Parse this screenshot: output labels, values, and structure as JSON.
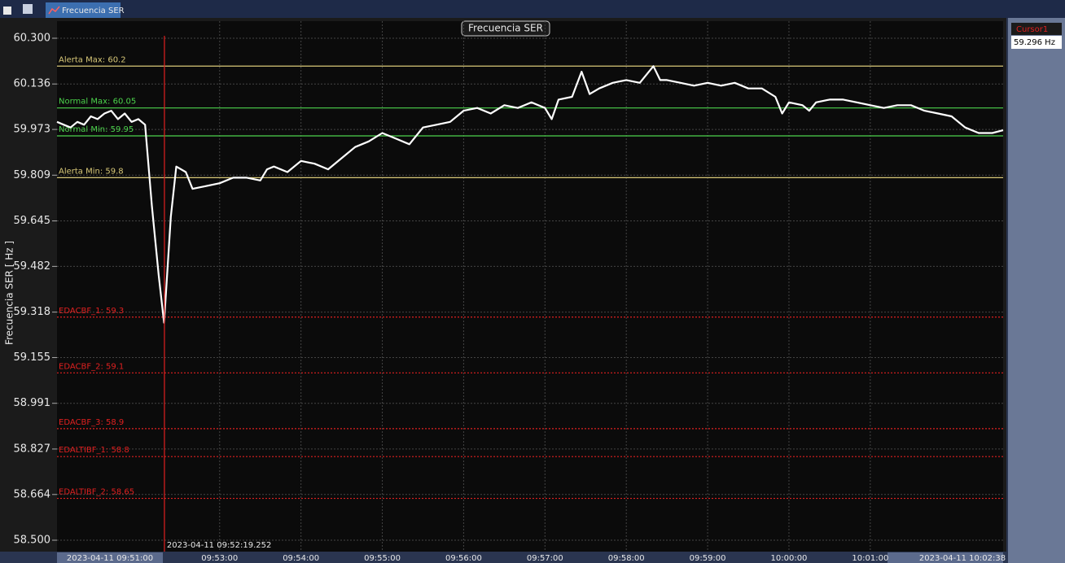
{
  "toolbar": {
    "tab": "Frecuencia SER"
  },
  "chart_data": {
    "type": "line",
    "title": "Frecuencia SER",
    "y_label": "Frecuencia SER [ Hz ]",
    "xlim": [
      "2023-04-11 09:51:00",
      "2023-04-11 10:02:38"
    ],
    "xticks": [
      "09:53:00",
      "09:54:00",
      "09:55:00",
      "09:56:00",
      "09:57:00",
      "09:58:00",
      "09:59:00",
      "10:00:00",
      "10:01:00"
    ],
    "ylim": [
      58.5,
      60.3
    ],
    "yticks": [
      {
        "value": 58.5,
        "label": "58.500"
      },
      58.664,
      58.827,
      58.991,
      59.155,
      59.318,
      59.482,
      59.645,
      59.809,
      59.973,
      60.136,
      {
        "value": 60.3,
        "label": "60.300"
      }
    ],
    "grid": true,
    "series": [
      {
        "color": "#ffffff",
        "x": [
          "09:51:00",
          "09:51:05",
          "09:51:10",
          "09:51:15",
          "09:51:20",
          "09:51:25",
          "09:51:30",
          "09:51:35",
          "09:51:40",
          "09:51:45",
          "09:51:50",
          "09:51:55",
          "09:52:00",
          "09:52:05",
          "09:52:10",
          "09:52:15",
          "09:52:19",
          "09:52:24",
          "09:52:28",
          "09:52:35",
          "09:52:40",
          "09:52:50",
          "09:53:00",
          "09:53:10",
          "09:53:20",
          "09:53:30",
          "09:53:35",
          "09:53:40",
          "09:53:50",
          "09:54:00",
          "09:54:10",
          "09:54:20",
          "09:54:30",
          "09:54:40",
          "09:54:50",
          "09:55:00",
          "09:55:10",
          "09:55:20",
          "09:55:30",
          "09:55:40",
          "09:55:50",
          "09:56:00",
          "09:56:10",
          "09:56:20",
          "09:56:30",
          "09:56:40",
          "09:56:50",
          "09:57:00",
          "09:57:05",
          "09:57:10",
          "09:57:20",
          "09:57:27",
          "09:57:33",
          "09:57:40",
          "09:57:50",
          "09:58:00",
          "09:58:10",
          "09:58:20",
          "09:58:25",
          "09:58:30",
          "09:58:40",
          "09:58:50",
          "09:59:00",
          "09:59:10",
          "09:59:20",
          "09:59:30",
          "09:59:40",
          "09:59:50",
          "09:59:55",
          "10:00:00",
          "10:00:10",
          "10:00:15",
          "10:00:20",
          "10:00:30",
          "10:00:40",
          "10:00:50",
          "10:01:00",
          "10:01:10",
          "10:01:20",
          "10:01:30",
          "10:01:40",
          "10:01:50",
          "10:02:00",
          "10:02:10",
          "10:02:20",
          "10:02:30",
          "10:02:38"
        ],
        "values": [
          60.0,
          59.99,
          59.98,
          60.0,
          59.99,
          60.02,
          60.01,
          60.03,
          60.04,
          60.01,
          60.03,
          60.0,
          60.01,
          59.99,
          59.7,
          59.45,
          59.28,
          59.66,
          59.84,
          59.82,
          59.76,
          59.77,
          59.78,
          59.8,
          59.8,
          59.79,
          59.83,
          59.84,
          59.82,
          59.86,
          59.85,
          59.83,
          59.87,
          59.91,
          59.93,
          59.96,
          59.94,
          59.92,
          59.98,
          59.99,
          60.0,
          60.04,
          60.05,
          60.03,
          60.06,
          60.05,
          60.07,
          60.05,
          60.01,
          60.08,
          60.09,
          60.18,
          60.1,
          60.12,
          60.14,
          60.15,
          60.14,
          60.2,
          60.15,
          60.15,
          60.14,
          60.13,
          60.14,
          60.13,
          60.14,
          60.12,
          60.12,
          60.09,
          60.03,
          60.07,
          60.06,
          60.04,
          60.07,
          60.08,
          60.08,
          60.07,
          60.06,
          60.05,
          60.06,
          60.06,
          60.04,
          60.03,
          60.02,
          59.98,
          59.96,
          59.96,
          59.97
        ]
      }
    ],
    "annotations": [
      {
        "label": "Alerta Max: 60.2",
        "value": 60.2,
        "color": "#d8c878",
        "dash": false
      },
      {
        "label": "Normal Max: 60.05",
        "value": 60.05,
        "color": "#4cd44c",
        "dash": false
      },
      {
        "label": "Normal Min: 59.95",
        "value": 59.95,
        "color": "#4cd44c",
        "dash": false
      },
      {
        "label": "Alerta Min: 59.8",
        "value": 59.8,
        "color": "#d8c878",
        "dash": false
      },
      {
        "label": "EDACBF_1: 59.3",
        "value": 59.3,
        "color": "#e02020",
        "dash": true
      },
      {
        "label": "EDACBF_2: 59.1",
        "value": 59.1,
        "color": "#e02020",
        "dash": true
      },
      {
        "label": "EDACBF_3: 58.9",
        "value": 58.9,
        "color": "#e02020",
        "dash": true
      },
      {
        "label": "EDALTIBF_1: 58.8",
        "value": 58.8,
        "color": "#e02020",
        "dash": true
      },
      {
        "label": "EDALTIBF_2: 58.65",
        "value": 58.65,
        "color": "#e02020",
        "dash": true
      }
    ],
    "cursor": {
      "name": "Cursor1",
      "time": "2023-04-11 09:52:19.252",
      "readout": "59.296 Hz",
      "color": "#e02020"
    }
  }
}
